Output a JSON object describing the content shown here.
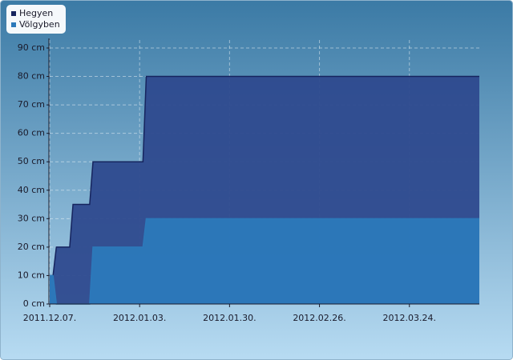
{
  "chart_data": {
    "type": "area",
    "x": [
      "2011-12-07",
      "2011-12-08",
      "2011-12-09",
      "2011-12-13",
      "2011-12-14",
      "2011-12-19",
      "2011-12-20",
      "2012-01-04",
      "2012-01-05",
      "2012-04-14"
    ],
    "series": [
      {
        "name": "Hegyen",
        "color": "#2e4a8e",
        "line": "#16245e",
        "values": [
          10,
          10,
          20,
          20,
          35,
          35,
          50,
          50,
          80,
          80
        ]
      },
      {
        "name": "Völgyben",
        "color": "#2c79ba",
        "line": "#2c79ba",
        "values": [
          10,
          10,
          0,
          0,
          0,
          0,
          20,
          20,
          30,
          30
        ]
      }
    ],
    "xlim": [
      "2011-12-07",
      "2012-04-14"
    ],
    "xticks": [
      {
        "value": "2011-12-07",
        "label": "2011.12.07."
      },
      {
        "value": "2012-01-03",
        "label": "2012.01.03."
      },
      {
        "value": "2012-01-30",
        "label": "2012.01.30."
      },
      {
        "value": "2012-02-26",
        "label": "2012.02.26."
      },
      {
        "value": "2012-03-24",
        "label": "2012.03.24."
      }
    ],
    "ylim": [
      0,
      90
    ],
    "yticks": [
      {
        "value": 0,
        "label": "0 cm"
      },
      {
        "value": 10,
        "label": "10 cm"
      },
      {
        "value": 20,
        "label": "20 cm"
      },
      {
        "value": 30,
        "label": "30 cm"
      },
      {
        "value": 40,
        "label": "40 cm"
      },
      {
        "value": 50,
        "label": "50 cm"
      },
      {
        "value": 60,
        "label": "60 cm"
      },
      {
        "value": 70,
        "label": "70 cm"
      },
      {
        "value": 80,
        "label": "80 cm"
      },
      {
        "value": 90,
        "label": "90 cm"
      }
    ],
    "grid": true,
    "legend": "top-left"
  }
}
